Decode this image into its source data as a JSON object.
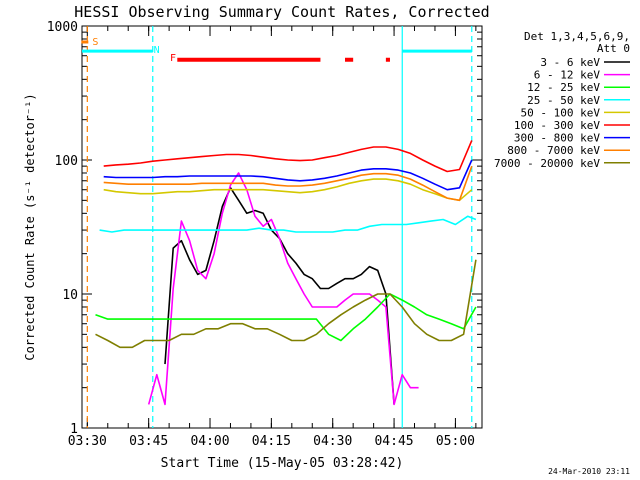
{
  "chart_data": {
    "type": "line",
    "title": "HESSI Observing Summary Count Rates, Corrected",
    "xlabel": "Start Time (15-May-05 03:28:42)",
    "ylabel": "Corrected Count Rate (s⁻¹ detector⁻¹)",
    "xlim": [
      "03:28:42",
      "05:06:30"
    ],
    "ylim": [
      1,
      1000
    ],
    "yscale": "log",
    "y_ticks": [
      "1",
      "10",
      "100",
      "1000"
    ],
    "x_ticks": [
      "03:30",
      "03:45",
      "04:00",
      "04:15",
      "04:30",
      "04:45",
      "05:00"
    ],
    "legend_header": [
      "Det 1,3,4,5,6,9,",
      "Att 0"
    ],
    "legend_position": "right",
    "footer": "24-Mar-2010 23:11",
    "series": [
      {
        "name": "3 - 6 keV",
        "color": "#000000",
        "x": [
          "03:49",
          "03:51",
          "03:53",
          "03:55",
          "03:57",
          "03:59",
          "04:01",
          "04:03",
          "04:05",
          "04:07",
          "04:09",
          "04:11",
          "04:13",
          "04:15",
          "04:17",
          "04:19",
          "04:21",
          "04:23",
          "04:25",
          "04:27",
          "04:29",
          "04:31",
          "04:33",
          "04:35",
          "04:37",
          "04:39",
          "04:41",
          "04:43",
          "04:45",
          "04:47",
          "04:49",
          "04:51",
          "04:53",
          "04:55",
          "04:57",
          "04:59",
          "05:01",
          "05:03",
          "05:05"
        ],
        "y": [
          3,
          22,
          25,
          18,
          14,
          15,
          25,
          45,
          62,
          50,
          40,
          42,
          40,
          30,
          26,
          20,
          17,
          14,
          13,
          11,
          11,
          12,
          13,
          13,
          14,
          16,
          15,
          10,
          1.5,
          null,
          null,
          null,
          null,
          null,
          null,
          null,
          null,
          null,
          null
        ]
      },
      {
        "name": "6 - 12 keV",
        "color": "#ff00ff",
        "x": [
          "03:45",
          "03:47",
          "03:49",
          "03:51",
          "03:53",
          "03:55",
          "03:57",
          "03:59",
          "04:01",
          "04:03",
          "04:05",
          "04:07",
          "04:09",
          "04:11",
          "04:13",
          "04:15",
          "04:17",
          "04:19",
          "04:21",
          "04:23",
          "04:25",
          "04:27",
          "04:29",
          "04:31",
          "04:33",
          "04:35",
          "04:37",
          "04:39",
          "04:41",
          "04:43",
          "04:45",
          "04:47",
          "04:49",
          "04:51"
        ],
        "y": [
          1.5,
          2.5,
          1.5,
          11,
          35,
          25,
          15,
          13,
          20,
          40,
          65,
          80,
          60,
          38,
          32,
          36,
          26,
          17,
          13,
          10,
          8,
          8,
          8,
          8,
          9,
          10,
          10,
          10,
          9,
          8,
          1.5,
          2.5,
          2,
          2
        ]
      },
      {
        "name": "12 - 25 keV",
        "color": "#00ff00",
        "x": [
          "03:32",
          "03:35",
          "03:38",
          "03:41",
          "03:44",
          "03:47",
          "03:50",
          "03:53",
          "03:56",
          "03:59",
          "04:02",
          "04:05",
          "04:08",
          "04:11",
          "04:14",
          "04:17",
          "04:20",
          "04:23",
          "04:26",
          "04:29",
          "04:32",
          "04:35",
          "04:38",
          "04:41",
          "04:44",
          "04:47",
          "04:50",
          "04:53",
          "04:56",
          "04:59",
          "05:02",
          "05:05"
        ],
        "y": [
          7,
          6.5,
          6.5,
          6.5,
          6.5,
          6.5,
          6.5,
          6.5,
          6.5,
          6.5,
          6.5,
          6.5,
          6.5,
          6.5,
          6.5,
          6.5,
          6.5,
          6.5,
          6.5,
          5,
          4.5,
          5.5,
          6.5,
          8,
          10,
          9,
          8,
          7,
          6.5,
          6,
          5.5,
          8
        ]
      },
      {
        "name": "25 - 50 keV",
        "color": "#00ffff",
        "x": [
          "03:33",
          "03:36",
          "03:39",
          "03:42",
          "03:45",
          "03:48",
          "03:51",
          "03:54",
          "03:57",
          "04:00",
          "04:03",
          "04:06",
          "04:09",
          "04:12",
          "04:15",
          "04:18",
          "04:21",
          "04:24",
          "04:27",
          "04:30",
          "04:33",
          "04:36",
          "04:39",
          "04:42",
          "04:45",
          "04:48",
          "04:51",
          "04:54",
          "04:57",
          "05:00",
          "05:03",
          "05:05"
        ],
        "y": [
          30,
          29,
          30,
          30,
          30,
          30,
          30,
          30,
          30,
          30,
          30,
          30,
          30,
          31,
          30,
          30,
          29,
          29,
          29,
          29,
          30,
          30,
          32,
          33,
          33,
          33,
          34,
          35,
          36,
          33,
          38,
          36
        ]
      },
      {
        "name": "50 - 100 keV",
        "color": "#d4c800",
        "x": [
          "03:34",
          "03:37",
          "03:40",
          "03:43",
          "03:46",
          "03:49",
          "03:52",
          "03:55",
          "03:58",
          "04:01",
          "04:04",
          "04:07",
          "04:10",
          "04:13",
          "04:16",
          "04:19",
          "04:22",
          "04:25",
          "04:28",
          "04:31",
          "04:34",
          "04:37",
          "04:40",
          "04:43",
          "04:46",
          "04:49",
          "04:52",
          "04:55",
          "04:58",
          "05:01",
          "05:04"
        ],
        "y": [
          60,
          58,
          57,
          56,
          56,
          57,
          58,
          58,
          59,
          60,
          60,
          60,
          60,
          60,
          59,
          58,
          57,
          58,
          60,
          63,
          67,
          70,
          72,
          72,
          70,
          66,
          60,
          56,
          52,
          50,
          60
        ]
      },
      {
        "name": "100 - 300 keV",
        "color": "#ff0000",
        "x": [
          "03:34",
          "03:37",
          "03:40",
          "03:43",
          "03:46",
          "03:49",
          "03:52",
          "03:55",
          "03:58",
          "04:01",
          "04:04",
          "04:07",
          "04:10",
          "04:13",
          "04:16",
          "04:19",
          "04:22",
          "04:25",
          "04:28",
          "04:31",
          "04:34",
          "04:37",
          "04:40",
          "04:43",
          "04:46",
          "04:49",
          "04:52",
          "04:55",
          "04:58",
          "05:01",
          "05:04"
        ],
        "y": [
          90,
          92,
          93,
          95,
          98,
          100,
          102,
          104,
          106,
          108,
          110,
          110,
          108,
          105,
          102,
          100,
          99,
          100,
          104,
          108,
          114,
          120,
          125,
          125,
          120,
          112,
          100,
          90,
          82,
          85,
          140
        ]
      },
      {
        "name": "300 - 800 keV",
        "color": "#0000ff",
        "x": [
          "03:34",
          "03:37",
          "03:40",
          "03:43",
          "03:46",
          "03:49",
          "03:52",
          "03:55",
          "03:58",
          "04:01",
          "04:04",
          "04:07",
          "04:10",
          "04:13",
          "04:16",
          "04:19",
          "04:22",
          "04:25",
          "04:28",
          "04:31",
          "04:34",
          "04:37",
          "04:40",
          "04:43",
          "04:46",
          "04:49",
          "04:52",
          "04:55",
          "04:58",
          "05:01",
          "05:04"
        ],
        "y": [
          75,
          74,
          74,
          74,
          74,
          75,
          75,
          76,
          76,
          76,
          76,
          76,
          76,
          75,
          73,
          71,
          70,
          71,
          73,
          76,
          80,
          84,
          86,
          86,
          84,
          80,
          73,
          66,
          60,
          62,
          100
        ]
      },
      {
        "name": "800 - 7000 keV",
        "color": "#ff7f00",
        "x": [
          "03:34",
          "03:37",
          "03:40",
          "03:43",
          "03:46",
          "03:49",
          "03:52",
          "03:55",
          "03:58",
          "04:01",
          "04:04",
          "04:07",
          "04:10",
          "04:13",
          "04:16",
          "04:19",
          "04:22",
          "04:25",
          "04:28",
          "04:31",
          "04:34",
          "04:37",
          "04:40",
          "04:43",
          "04:46",
          "04:49",
          "04:52",
          "04:55",
          "04:58",
          "05:01",
          "05:04"
        ],
        "y": [
          68,
          67,
          66,
          66,
          66,
          66,
          66,
          66,
          67,
          67,
          67,
          67,
          67,
          67,
          65,
          64,
          64,
          65,
          67,
          70,
          73,
          77,
          79,
          79,
          77,
          72,
          65,
          58,
          52,
          50,
          90
        ]
      },
      {
        "name": "7000 - 20000 keV",
        "color": "#7f7f00",
        "x": [
          "03:32",
          "03:35",
          "03:38",
          "03:41",
          "03:44",
          "03:47",
          "03:50",
          "03:53",
          "03:56",
          "03:59",
          "04:02",
          "04:05",
          "04:08",
          "04:11",
          "04:14",
          "04:17",
          "04:20",
          "04:23",
          "04:26",
          "04:29",
          "04:32",
          "04:35",
          "04:38",
          "04:41",
          "04:44",
          "04:47",
          "04:50",
          "04:53",
          "04:56",
          "04:59",
          "05:02",
          "05:05"
        ],
        "y": [
          5,
          4.5,
          4,
          4,
          4.5,
          4.5,
          4.5,
          5,
          5,
          5.5,
          5.5,
          6,
          6,
          5.5,
          5.5,
          5,
          4.5,
          4.5,
          5,
          6,
          7,
          8,
          9,
          10,
          10,
          8,
          6,
          5,
          4.5,
          4.5,
          5,
          18
        ]
      }
    ],
    "flag_markers": [
      {
        "label": "S",
        "color": "#ff7f00",
        "x": "03:30"
      },
      {
        "label": "N",
        "color": "#00ffff",
        "x": "03:45"
      },
      {
        "label": "F",
        "color": "#ff0000",
        "x": "03:49"
      }
    ],
    "vertical_lines": [
      {
        "x": "03:30",
        "style": "dashed",
        "color": "#ff7f00"
      },
      {
        "x": "03:46",
        "style": "dashed",
        "color": "#00ffff"
      },
      {
        "x": "04:47",
        "style": "solid",
        "color": "#00ffff"
      },
      {
        "x": "05:04",
        "style": "dashed",
        "color": "#00ffff"
      }
    ],
    "night_bars_y": 650,
    "night_bars": [
      [
        "03:28:42",
        "03:46"
      ],
      [
        "04:47",
        "05:04"
      ]
    ],
    "flare_bars_y": 560,
    "flare_bars": [
      [
        "03:52",
        "04:27"
      ],
      [
        "04:33",
        "04:35"
      ],
      [
        "04:43",
        "04:44"
      ]
    ]
  }
}
